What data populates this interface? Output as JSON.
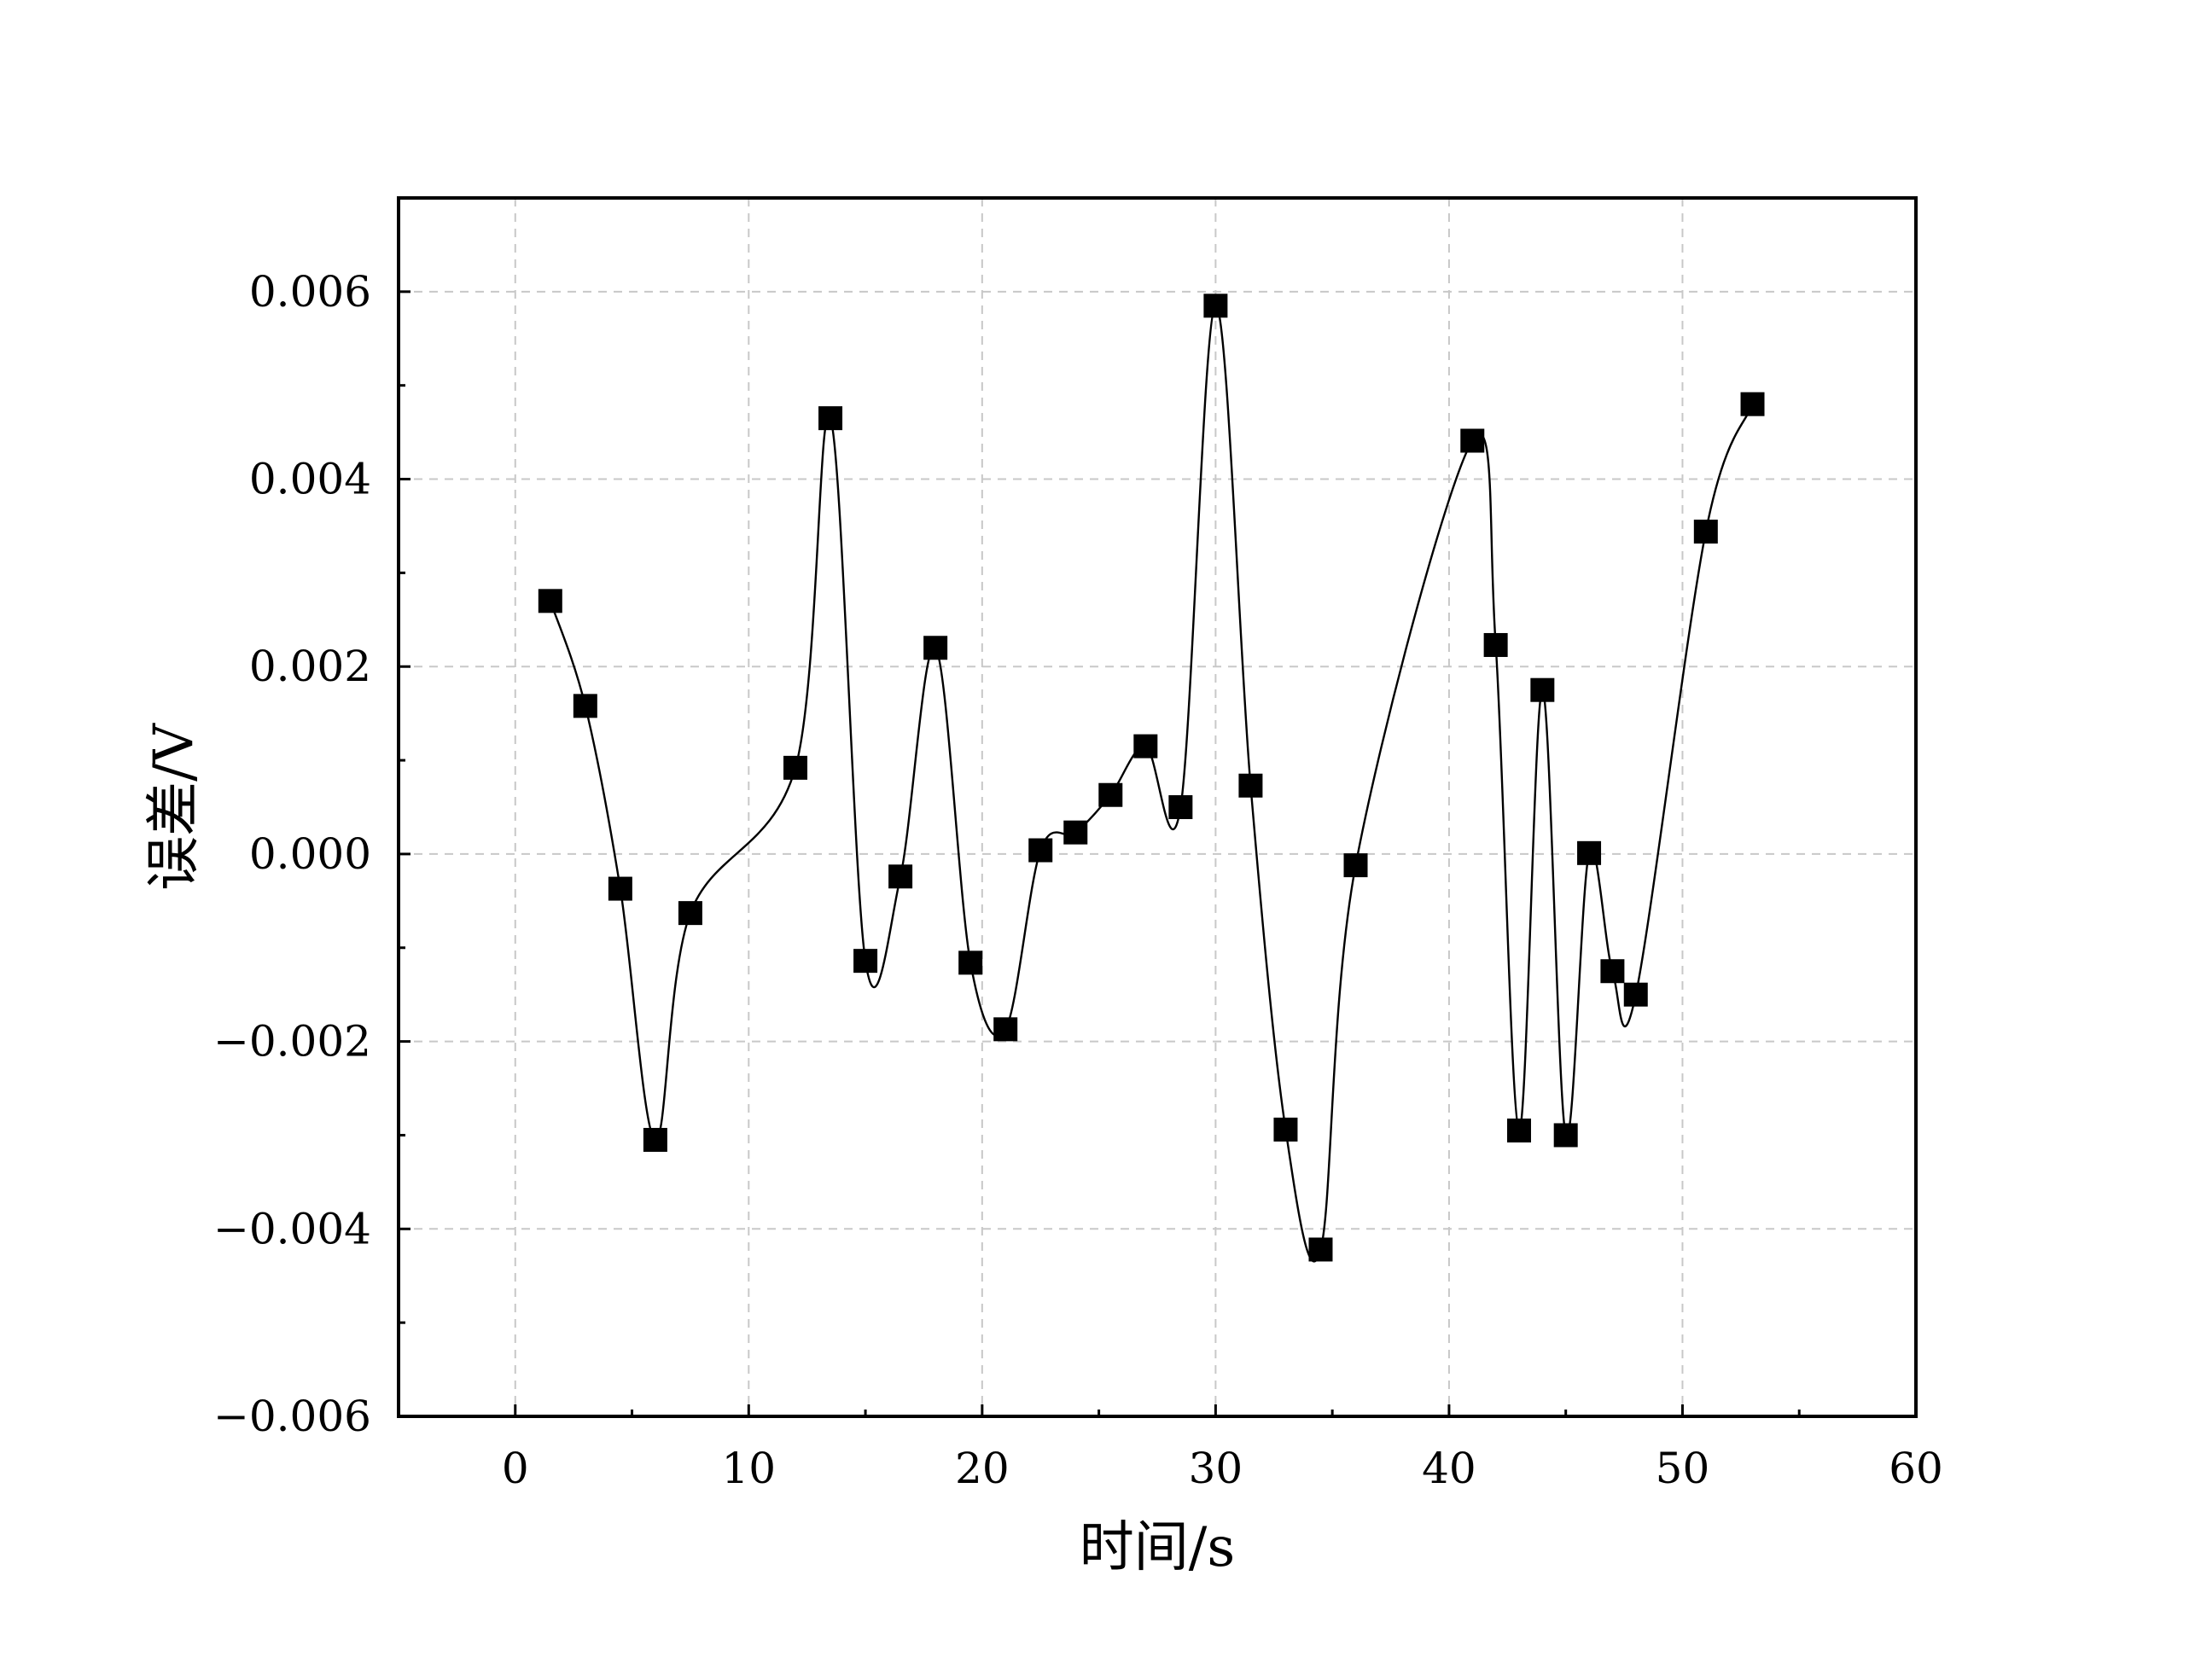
{
  "chart_data": {
    "type": "line",
    "title": "",
    "xlabel": "时间/s",
    "ylabel": "误差/V",
    "xlim": [
      -5,
      60
    ],
    "ylim": [
      -0.006,
      0.007
    ],
    "x_ticks": [
      0,
      10,
      20,
      30,
      40,
      50,
      60
    ],
    "x_tick_labels": [
      "0",
      "10",
      "20",
      "30",
      "40",
      "50",
      "60"
    ],
    "y_ticks": [
      -0.006,
      -0.004,
      -0.002,
      0.0,
      0.002,
      0.004,
      0.006
    ],
    "y_tick_labels": [
      "−0.006",
      "−0.004",
      "−0.002",
      "0.000",
      "0.002",
      "0.004",
      "0.006"
    ],
    "grid": true,
    "series": [
      {
        "name": "误差",
        "marker": "square",
        "color": "#000000",
        "x": [
          1.5,
          3,
          4.5,
          6,
          7.5,
          12,
          13.5,
          15,
          16.5,
          18,
          19.5,
          21,
          22.5,
          24,
          25.5,
          27,
          28.5,
          30,
          31.5,
          33,
          34.5,
          36,
          41,
          42,
          43,
          44,
          45,
          46,
          47,
          48,
          51,
          53
        ],
        "y": [
          0.0027,
          0.00158,
          -0.00037,
          -0.00305,
          -0.00063,
          0.00092,
          0.00465,
          -0.00114,
          -0.00024,
          0.0022,
          -0.00116,
          -0.00187,
          4e-05,
          0.00023,
          0.00063,
          0.00115,
          0.0005,
          0.00585,
          0.00073,
          -0.00294,
          -0.00422,
          -0.00012,
          0.00441,
          0.00223,
          -0.00295,
          0.00175,
          -0.003,
          1e-05,
          -0.00125,
          -0.0015,
          0.00344,
          0.0048
        ]
      }
    ]
  }
}
